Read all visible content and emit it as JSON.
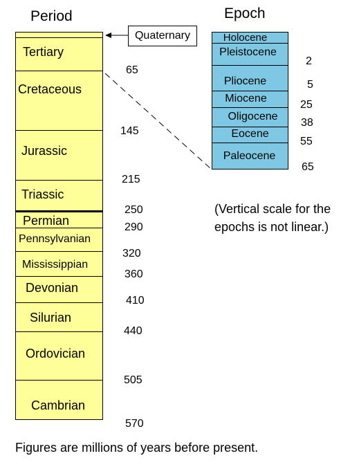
{
  "headers": {
    "period": "Period",
    "epoch": "Epoch"
  },
  "periods": [
    {
      "name": "Tertiary"
    },
    {
      "name": "Cretaceous"
    },
    {
      "name": "Jurassic"
    },
    {
      "name": "Triassic"
    },
    {
      "name": "Permian"
    },
    {
      "name": "Pennsylvanian"
    },
    {
      "name": "Mississippian"
    },
    {
      "name": "Devonian"
    },
    {
      "name": "Silurian"
    },
    {
      "name": "Ordovician"
    },
    {
      "name": "Cambrian"
    }
  ],
  "period_ages": [
    "65",
    "145",
    "215",
    "250",
    "290",
    "320",
    "360",
    "410",
    "440",
    "505",
    "570"
  ],
  "epochs": [
    {
      "name": "Holocene"
    },
    {
      "name": "Pleistocene"
    },
    {
      "name": "Pliocene"
    },
    {
      "name": "Miocene"
    },
    {
      "name": "Oligocene"
    },
    {
      "name": "Eocene"
    },
    {
      "name": "Paleocene"
    }
  ],
  "epoch_ages": [
    "2",
    "5",
    "25",
    "38",
    "55",
    "65"
  ],
  "callout": {
    "label": "Quaternary"
  },
  "notes": {
    "scale_line1": "(Vertical scale for the",
    "scale_line2": "epochs is not linear.)",
    "footer": "Figures are millions of years before present."
  },
  "colors": {
    "period_fill": "#ffff99",
    "epoch_fill": "#7ec8e3"
  }
}
